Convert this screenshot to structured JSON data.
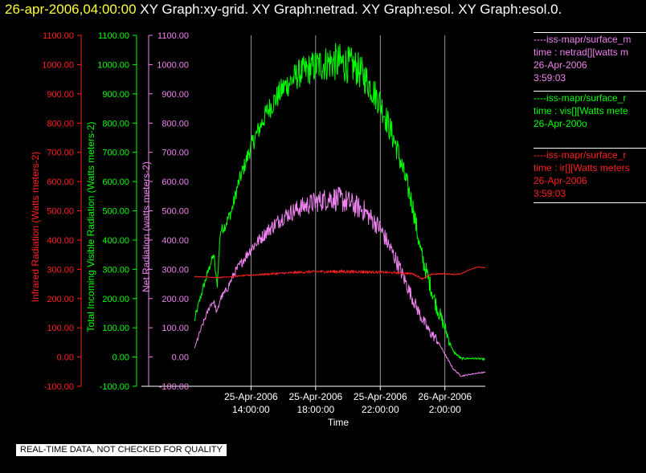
{
  "header": {
    "timestamp": "26-apr-2006,04:00:00",
    "graphs": "XY Graph:xy-grid.  XY Graph:netrad.  XY Graph:esol.  XY Graph:esol.0."
  },
  "legend": [
    {
      "line1": "----iss-mapr/surface_m",
      "line2": "time : netrad[][watts m",
      "line3": "26-Apr-2006",
      "line4": "3:59:03",
      "color": "#ee82ee"
    },
    {
      "line1": "----iss-mapr/surface_r",
      "line2": "time : vis[][Watts mete",
      "line3": "26-Apr-200o",
      "line4": "",
      "color": "#00ff00"
    },
    {
      "line1": "----iss-mapr/surface_r",
      "line2": "time : ir[][Watts meters",
      "line3": "26-Apr-2006",
      "line4": "3:59:03",
      "color": "#ff2020"
    }
  ],
  "notice": "REAL-TIME DATA, NOT CHECKED FOR QUALITY",
  "chart_data": {
    "type": "line",
    "xlabel": "Time",
    "x_ticks": [
      {
        "date": "25-Apr-2006",
        "time": "14:00:00"
      },
      {
        "date": "25-Apr-2006",
        "time": "18:00:00"
      },
      {
        "date": "25-Apr-2006",
        "time": "22:00:00"
      },
      {
        "date": "26-Apr-2006",
        "time": "2:00:00"
      }
    ],
    "x_tick_hours": [
      14,
      18,
      22,
      26
    ],
    "x_range_hours": [
      10.5,
      28.5
    ],
    "y_ticks": [
      "1100.00",
      "1000.00",
      "900.00",
      "800.00",
      "700.00",
      "600.00",
      "500.00",
      "400.00",
      "300.00",
      "200.00",
      "100.00",
      "0.00",
      "-100.00"
    ],
    "ylim": [
      -100,
      1100
    ],
    "axes": [
      {
        "label": "Infrared Radiation (Watts meters-2)",
        "color": "#ff2020"
      },
      {
        "label": "Total Incoming Visible Radiation (Watts meters-2)",
        "color": "#00ff00"
      },
      {
        "label": "Net Radiation (watts meters-2)",
        "color": "#ee82ee"
      }
    ],
    "grid_vertical": true,
    "series": [
      {
        "name": "vis",
        "color": "#00ff00",
        "noise": 55,
        "points": [
          [
            10.5,
            125
          ],
          [
            11.0,
            230
          ],
          [
            11.5,
            320
          ],
          [
            11.7,
            350
          ],
          [
            11.9,
            240
          ],
          [
            12.1,
            430
          ],
          [
            12.4,
            450
          ],
          [
            12.8,
            500
          ],
          [
            13.2,
            590
          ],
          [
            14.0,
            720
          ],
          [
            15.0,
            840
          ],
          [
            16.0,
            920
          ],
          [
            17.0,
            970
          ],
          [
            18.0,
            995
          ],
          [
            19.0,
            1010
          ],
          [
            20.0,
            1000
          ],
          [
            20.5,
            990
          ],
          [
            21.0,
            960
          ],
          [
            22.0,
            870
          ],
          [
            23.0,
            720
          ],
          [
            24.0,
            520
          ],
          [
            24.5,
            360
          ],
          [
            24.8,
            300
          ],
          [
            25.5,
            170
          ],
          [
            26.0,
            100
          ],
          [
            26.5,
            20
          ],
          [
            27.0,
            -5
          ],
          [
            27.5,
            -5
          ],
          [
            28.0,
            -5
          ],
          [
            28.5,
            -8
          ]
        ]
      },
      {
        "name": "netrad",
        "color": "#ee82ee",
        "noise": 35,
        "points": [
          [
            10.5,
            30
          ],
          [
            11.0,
            110
          ],
          [
            11.5,
            180
          ],
          [
            11.7,
            190
          ],
          [
            11.9,
            150
          ],
          [
            12.1,
            200
          ],
          [
            12.5,
            230
          ],
          [
            13.0,
            290
          ],
          [
            14.0,
            370
          ],
          [
            15.0,
            430
          ],
          [
            16.0,
            480
          ],
          [
            17.0,
            510
          ],
          [
            18.0,
            530
          ],
          [
            19.0,
            545
          ],
          [
            20.0,
            530
          ],
          [
            21.0,
            500
          ],
          [
            22.0,
            440
          ],
          [
            23.0,
            330
          ],
          [
            24.0,
            200
          ],
          [
            24.5,
            140
          ],
          [
            25.0,
            90
          ],
          [
            25.5,
            60
          ],
          [
            26.0,
            10
          ],
          [
            26.5,
            -40
          ],
          [
            27.0,
            -65
          ],
          [
            27.5,
            -60
          ],
          [
            28.0,
            -55
          ],
          [
            28.5,
            -52
          ]
        ]
      },
      {
        "name": "ir",
        "color": "#ff2020",
        "noise": 4,
        "points": [
          [
            10.5,
            275
          ],
          [
            12.0,
            272
          ],
          [
            14.0,
            280
          ],
          [
            16.0,
            287
          ],
          [
            18.0,
            292
          ],
          [
            20.0,
            292
          ],
          [
            22.0,
            290
          ],
          [
            23.0,
            288
          ],
          [
            24.0,
            285
          ],
          [
            24.6,
            268
          ],
          [
            25.2,
            283
          ],
          [
            26.0,
            285
          ],
          [
            26.6,
            282
          ],
          [
            27.0,
            285
          ],
          [
            27.5,
            298
          ],
          [
            28.0,
            308
          ],
          [
            28.5,
            305
          ]
        ]
      }
    ]
  }
}
